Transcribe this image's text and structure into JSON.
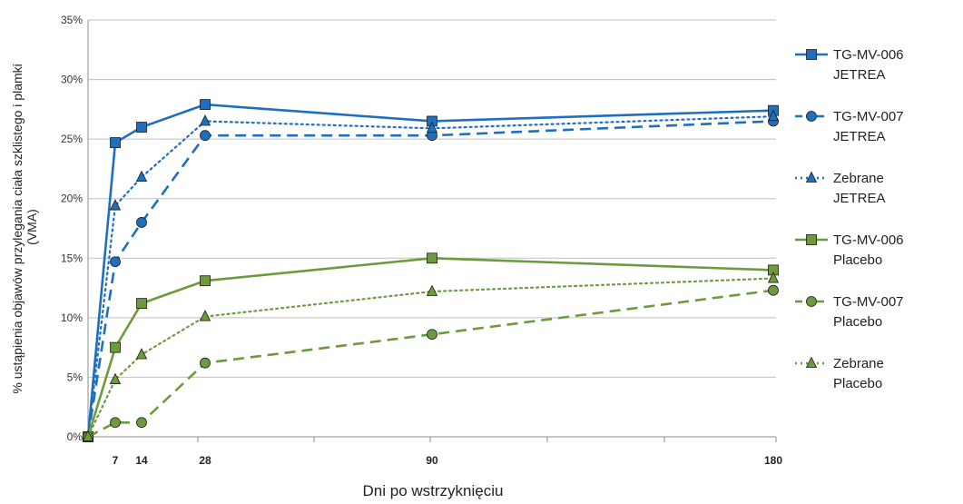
{
  "chart_data": {
    "type": "line",
    "xlabel": "Dni po wstrzyknięciu",
    "ylabel_lines": [
      "% ustąpienia objawów przylegania ciała szklistego i plamki",
      "(VMA)"
    ],
    "x_ticks": [
      7,
      14,
      28,
      90,
      180
    ],
    "xlim": [
      0,
      180
    ],
    "ylim": [
      0,
      35
    ],
    "y_ticks": [
      0,
      5,
      10,
      15,
      20,
      25,
      30,
      35
    ],
    "y_tick_labels": [
      "0%",
      "5%",
      "10%",
      "15%",
      "20%",
      "25%",
      "30%",
      "35%"
    ],
    "grid": "horizontal",
    "legend_position": "right",
    "x": [
      0,
      7,
      14,
      28,
      90,
      180
    ],
    "series": [
      {
        "name_lines": [
          "TG-MV-006",
          "JETREA"
        ],
        "values": [
          0,
          24.7,
          26.0,
          27.9,
          26.5,
          27.4
        ],
        "color": "#1F6FBF",
        "dash": "solid",
        "marker": "square"
      },
      {
        "name_lines": [
          "TG-MV-007",
          "JETREA"
        ],
        "values": [
          0,
          14.7,
          18.0,
          25.3,
          25.3,
          26.5
        ],
        "color": "#1F6FBF",
        "dash": "dashed",
        "marker": "circle"
      },
      {
        "name_lines": [
          "Zebrane",
          "JETREA"
        ],
        "values": [
          0,
          19.4,
          21.8,
          26.5,
          25.9,
          26.9
        ],
        "color": "#1F6FBF",
        "dash": "dotted",
        "marker": "triangle"
      },
      {
        "name_lines": [
          "TG-MV-006",
          "Placebo"
        ],
        "values": [
          0,
          7.5,
          11.2,
          13.1,
          15.0,
          14.0
        ],
        "color": "#6E9A3E",
        "dash": "solid",
        "marker": "square"
      },
      {
        "name_lines": [
          "TG-MV-007",
          "Placebo"
        ],
        "values": [
          0,
          1.2,
          1.2,
          6.2,
          8.6,
          12.3
        ],
        "color": "#6E9A3E",
        "dash": "dashed",
        "marker": "circle"
      },
      {
        "name_lines": [
          "Zebrane",
          "Placebo"
        ],
        "values": [
          0,
          4.8,
          6.9,
          10.1,
          12.2,
          13.3
        ],
        "color": "#6E9A3E",
        "dash": "dotted",
        "marker": "triangle"
      }
    ]
  }
}
